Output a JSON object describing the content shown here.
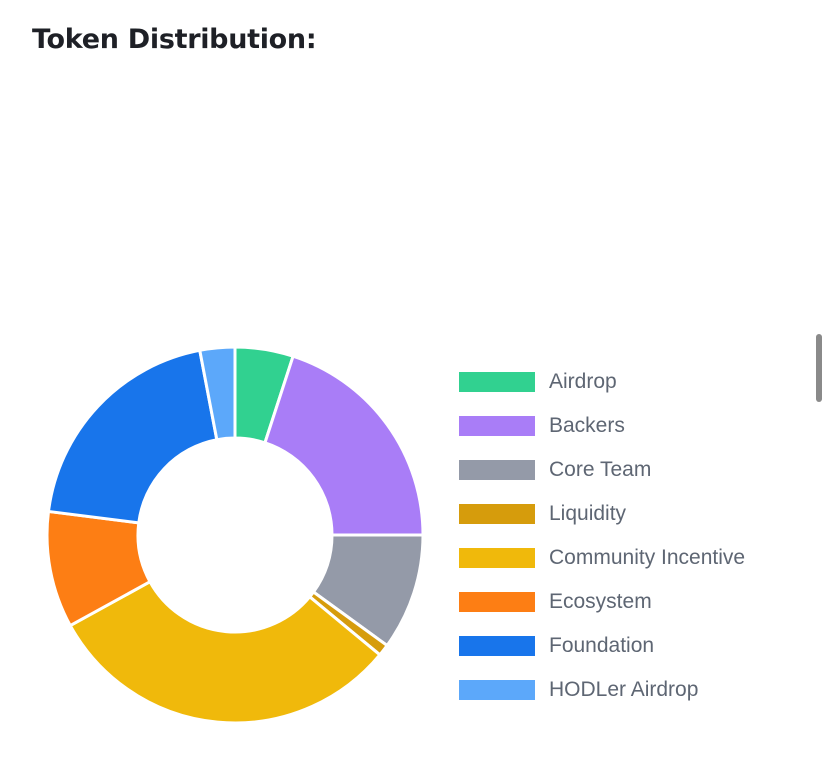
{
  "page": {
    "title": "Token Distribution:"
  },
  "chart_data": {
    "type": "pie",
    "donut": true,
    "legend_position": "right",
    "categories": [
      "Airdrop",
      "Backers",
      "Core Team",
      "Liquidity",
      "Community Incentive",
      "Ecosystem",
      "Foundation",
      "HODLer Airdrop"
    ],
    "values": [
      5,
      20,
      10,
      1,
      31,
      10,
      20,
      3
    ],
    "colors": [
      "#31d190",
      "#a97df7",
      "#949aa8",
      "#d69c0c",
      "#f0b90b",
      "#fd7e14",
      "#1875eb",
      "#5ca8fa"
    ]
  }
}
